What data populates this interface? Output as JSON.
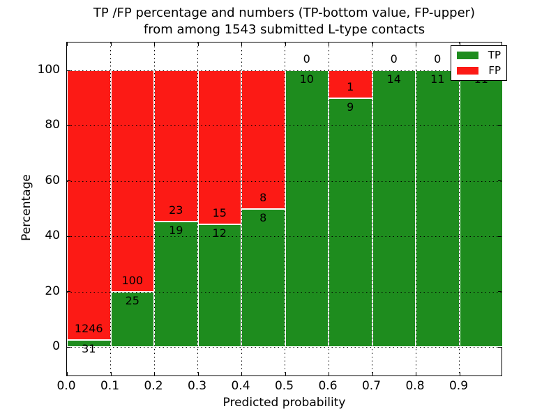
{
  "title": {
    "line1": "TP /FP percentage and numbers (TP-bottom value, FP-upper)",
    "line2": "from among 1543 submitted L-type contacts"
  },
  "axes": {
    "xlabel": "Predicted probability",
    "ylabel": "Percentage",
    "xtick_labels": [
      "0.0",
      "0.1",
      "0.2",
      "0.3",
      "0.4",
      "0.5",
      "0.6",
      "0.7",
      "0.8",
      "0.9"
    ],
    "ytick_labels": [
      "0",
      "20",
      "40",
      "60",
      "80",
      "100"
    ],
    "ytick_values": [
      0,
      20,
      40,
      60,
      80,
      100
    ]
  },
  "legend": {
    "entries": [
      {
        "label": "TP",
        "color": "#1e8c1e"
      },
      {
        "label": "FP",
        "color": "#fc1a15"
      }
    ]
  },
  "colors": {
    "tp": "#1e8c1e",
    "fp": "#fc1a15",
    "bar_edge": "#ffffff",
    "grid": "#000000",
    "background": "#ffffff"
  },
  "chart_data": {
    "type": "bar",
    "stacked": true,
    "normalized_to_percent": true,
    "title": "TP /FP percentage and numbers (TP-bottom value, FP-upper) from among 1543 submitted L-type contacts",
    "xlabel": "Predicted probability",
    "ylabel": "Percentage",
    "xlim": [
      0.0,
      1.0
    ],
    "ylim": [
      -10.8,
      110.1
    ],
    "xticks": [
      0.0,
      0.1,
      0.2,
      0.3,
      0.4,
      0.5,
      0.6,
      0.7,
      0.8,
      0.9
    ],
    "yticks": [
      0,
      20,
      40,
      60,
      80,
      100
    ],
    "grid": "dotted",
    "legend_position": "upper right",
    "total_contacts": 1543,
    "bins": [
      {
        "x_start": 0.0,
        "x_end": 0.1,
        "tp": 31,
        "fp": 1246
      },
      {
        "x_start": 0.1,
        "x_end": 0.2,
        "tp": 25,
        "fp": 100
      },
      {
        "x_start": 0.2,
        "x_end": 0.3,
        "tp": 19,
        "fp": 23
      },
      {
        "x_start": 0.3,
        "x_end": 0.4,
        "tp": 12,
        "fp": 15
      },
      {
        "x_start": 0.4,
        "x_end": 0.5,
        "tp": 8,
        "fp": 8
      },
      {
        "x_start": 0.5,
        "x_end": 0.6,
        "tp": 10,
        "fp": 0
      },
      {
        "x_start": 0.6,
        "x_end": 0.7,
        "tp": 9,
        "fp": 1
      },
      {
        "x_start": 0.7,
        "x_end": 0.8,
        "tp": 14,
        "fp": 0
      },
      {
        "x_start": 0.8,
        "x_end": 0.9,
        "tp": 11,
        "fp": 0
      },
      {
        "x_start": 0.9,
        "x_end": 1.0,
        "tp": 11,
        "fp": 0
      }
    ],
    "series": [
      {
        "name": "TP",
        "color": "#1e8c1e",
        "values": [
          31,
          25,
          19,
          12,
          8,
          10,
          9,
          14,
          11,
          11
        ]
      },
      {
        "name": "FP",
        "color": "#fc1a15",
        "values": [
          1246,
          100,
          23,
          15,
          8,
          0,
          1,
          0,
          0,
          0
        ]
      }
    ]
  }
}
